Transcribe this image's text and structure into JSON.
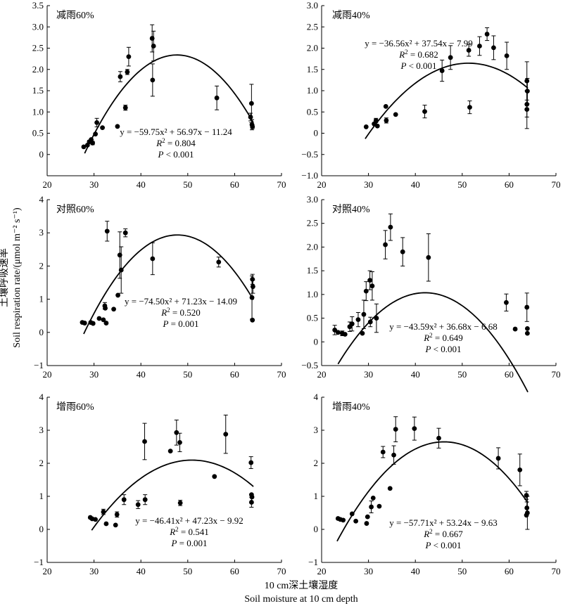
{
  "y_label_cn": "土壤呼吸速率",
  "y_label_en": "Soil respiration rate/(μmol m⁻² s⁻¹)",
  "x_label_cn": "10 cm深土壤湿度",
  "x_label_en": "Soil moisture at 10 cm depth",
  "chart_data": [
    {
      "type": "scatter",
      "title": "减雨60%",
      "xlim": [
        20,
        70
      ],
      "ylim": [
        -0.5,
        3.5
      ],
      "xticks": [
        20,
        30,
        40,
        50,
        60,
        70
      ],
      "yticks": [
        0,
        0.5,
        1.0,
        1.5,
        2.0,
        2.5,
        3.0,
        3.5
      ],
      "ytick_labels": [
        "0",
        "0.5",
        "1.0",
        "1.5",
        "2.0",
        "2.5",
        "3.0",
        "3.5"
      ],
      "fit": {
        "a": -59.75,
        "b": 56.97,
        "c": -11.24,
        "x_range": [
          28,
          64
        ]
      },
      "eq_line1": "y = −59.75x² + 56.97x − 11.24",
      "r2_value": " = 0.804",
      "p_value": " < 0.001",
      "points": [
        [
          27.8,
          0.18,
          0
        ],
        [
          28.6,
          0.22,
          0
        ],
        [
          29.0,
          0.3,
          0.03
        ],
        [
          29.4,
          0.35,
          0
        ],
        [
          29.7,
          0.27,
          0.04
        ],
        [
          30.3,
          0.48,
          0
        ],
        [
          30.6,
          0.75,
          0.1
        ],
        [
          31.8,
          0.63,
          0
        ],
        [
          35.0,
          0.66,
          0
        ],
        [
          35.6,
          1.83,
          0.12
        ],
        [
          36.7,
          1.1,
          0.06
        ],
        [
          37.1,
          1.94,
          0.06
        ],
        [
          37.4,
          2.3,
          0.22
        ],
        [
          42.4,
          2.73,
          0.32
        ],
        [
          42.5,
          1.75,
          0.38
        ],
        [
          42.7,
          2.55,
          0.35
        ],
        [
          56.2,
          1.33,
          0.28
        ],
        [
          63.4,
          0.88,
          0.09
        ],
        [
          63.6,
          1.2,
          0.45
        ],
        [
          63.7,
          0.7,
          0.12
        ],
        [
          63.8,
          0.65,
          0.04
        ]
      ]
    },
    {
      "type": "scatter",
      "title": "减雨40%",
      "xlim": [
        20,
        70
      ],
      "ylim": [
        -1.0,
        3.0
      ],
      "xticks": [
        20,
        30,
        40,
        50,
        60,
        70
      ],
      "yticks": [
        -1.0,
        -0.5,
        0,
        0.5,
        1.0,
        1.5,
        2.0,
        2.5,
        3.0
      ],
      "ytick_labels": [
        "−1.0",
        "−0.5",
        "0",
        "0.5",
        "1.0",
        "1.5",
        "2.0",
        "2.5",
        "3.0"
      ],
      "fit": {
        "a": -36.56,
        "b": 37.54,
        "c": -7.99,
        "x_range": [
          29.3,
          64
        ]
      },
      "eq_line1": "y = −36.56x² + 37.54x − 7.99",
      "r2_value": " = 0.682",
      "p_value": " < 0.001",
      "points": [
        [
          29.5,
          0.15,
          0
        ],
        [
          31.2,
          0.22,
          0
        ],
        [
          31.6,
          0.3,
          0.05
        ],
        [
          31.9,
          0.17,
          0
        ],
        [
          33.7,
          0.63,
          0
        ],
        [
          33.8,
          0.3,
          0.06
        ],
        [
          35.8,
          0.44,
          0
        ],
        [
          42.0,
          0.51,
          0.15
        ],
        [
          45.7,
          1.47,
          0.25
        ],
        [
          47.5,
          1.78,
          0.28
        ],
        [
          51.4,
          1.95,
          0.14
        ],
        [
          51.6,
          0.61,
          0.15
        ],
        [
          53.7,
          2.05,
          0.22
        ],
        [
          55.3,
          2.33,
          0.15
        ],
        [
          56.7,
          2.01,
          0.28
        ],
        [
          59.5,
          1.82,
          0.32
        ],
        [
          63.8,
          1.23,
          0.45
        ],
        [
          63.9,
          0.99,
          0.3
        ],
        [
          63.8,
          0.68,
          0.3
        ],
        [
          63.8,
          0.56,
          0.45
        ]
      ]
    },
    {
      "type": "scatter",
      "title": "对照60%",
      "xlim": [
        20,
        70
      ],
      "ylim": [
        -1,
        4
      ],
      "xticks": [
        20,
        30,
        40,
        50,
        60,
        70
      ],
      "yticks": [
        -1,
        0,
        1,
        2,
        3,
        4
      ],
      "ytick_labels": [
        "−1",
        "0",
        "1",
        "2",
        "3",
        "4"
      ],
      "fit": {
        "a": -74.5,
        "b": 71.23,
        "c": -14.09,
        "x_range": [
          27.8,
          64
        ]
      },
      "eq_line1": "y = −74.50x² + 71.23x − 14.09",
      "r2_value": " = 0.520",
      "p_value": " = 0.001",
      "points": [
        [
          27.5,
          0.3,
          0
        ],
        [
          28.0,
          0.28,
          0
        ],
        [
          29.3,
          0.3,
          0
        ],
        [
          29.8,
          0.27,
          0
        ],
        [
          31.1,
          0.42,
          0
        ],
        [
          32.0,
          0.38,
          0
        ],
        [
          32.3,
          0.8,
          0.1
        ],
        [
          32.4,
          0.73,
          0
        ],
        [
          32.6,
          0.28,
          0
        ],
        [
          32.8,
          3.05,
          0.3
        ],
        [
          34.2,
          0.7,
          0
        ],
        [
          35.1,
          1.12,
          0
        ],
        [
          35.5,
          2.33,
          0.7
        ],
        [
          35.8,
          1.88,
          0.7
        ],
        [
          36.7,
          3.0,
          0.12
        ],
        [
          42.5,
          2.22,
          0.48
        ],
        [
          56.6,
          2.12,
          0.15
        ],
        [
          63.8,
          1.6,
          0.15
        ],
        [
          63.9,
          1.38,
          0.2
        ],
        [
          63.7,
          1.05,
          0.65
        ],
        [
          63.8,
          0.37,
          0
        ]
      ]
    },
    {
      "type": "scatter",
      "title": "对照40%",
      "xlim": [
        20,
        70
      ],
      "ylim": [
        -0.5,
        3.0
      ],
      "xticks": [
        20,
        30,
        40,
        50,
        60,
        70
      ],
      "yticks": [
        -0.5,
        0,
        0.5,
        1.0,
        1.5,
        2.0,
        2.5,
        3.0
      ],
      "ytick_labels": [
        "−0.5",
        "0",
        "0.5",
        "1.0",
        "1.5",
        "2.0",
        "2.5",
        "3.0"
      ],
      "fit": {
        "a": -43.59,
        "b": 36.68,
        "c": -6.68,
        "x_range": [
          23.5,
          64
        ]
      },
      "eq_line1": "y = −43.59x² + 36.68x − 6.68",
      "r2_value": " = 0.649",
      "p_value": " < 0.001",
      "points": [
        [
          22.8,
          0.25,
          0.1
        ],
        [
          23.5,
          0.2,
          0
        ],
        [
          24.4,
          0.18,
          0.05
        ],
        [
          25.0,
          0.16,
          0
        ],
        [
          26.0,
          0.32,
          0.1
        ],
        [
          26.5,
          0.38,
          0.15
        ],
        [
          27.8,
          0.47,
          0.15
        ],
        [
          28.7,
          0.18,
          0
        ],
        [
          29.0,
          0.58,
          0.3
        ],
        [
          29.5,
          1.07,
          0.2
        ],
        [
          30.3,
          1.3,
          0.2
        ],
        [
          30.4,
          0.42,
          0.1
        ],
        [
          30.8,
          1.18,
          0.3
        ],
        [
          31.7,
          0.5,
          0.3
        ],
        [
          33.6,
          2.05,
          0.3
        ],
        [
          34.7,
          2.42,
          0.28
        ],
        [
          37.3,
          1.9,
          0.3
        ],
        [
          42.8,
          1.78,
          0.5
        ],
        [
          59.4,
          0.83,
          0.18
        ],
        [
          61.3,
          0.27,
          0
        ],
        [
          63.8,
          0.73,
          0.3
        ],
        [
          63.9,
          0.28,
          0
        ],
        [
          63.9,
          0.18,
          0
        ]
      ]
    },
    {
      "type": "scatter",
      "title": "增雨60%",
      "xlim": [
        20,
        70
      ],
      "ylim": [
        -1,
        4
      ],
      "xticks": [
        20,
        30,
        40,
        50,
        60,
        70
      ],
      "yticks": [
        -1,
        0,
        1,
        2,
        3,
        4
      ],
      "ytick_labels": [
        "−1",
        "0",
        "1",
        "2",
        "3",
        "4"
      ],
      "fit": {
        "a": -46.41,
        "b": 47.23,
        "c": -9.92,
        "x_range": [
          29.5,
          64
        ]
      },
      "eq_line1": "y = −46.41x² + 47.23x − 9.92",
      "r2_value": " = 0.541",
      "p_value": " = 0.001",
      "points": [
        [
          29.2,
          0.36,
          0
        ],
        [
          29.6,
          0.32,
          0
        ],
        [
          30.3,
          0.3,
          0
        ],
        [
          32.0,
          0.53,
          0.08
        ],
        [
          32.6,
          0.17,
          0
        ],
        [
          34.6,
          0.13,
          0
        ],
        [
          34.9,
          0.45,
          0.08
        ],
        [
          36.4,
          0.9,
          0.15
        ],
        [
          39.4,
          0.75,
          0.12
        ],
        [
          40.8,
          2.66,
          0.55
        ],
        [
          40.9,
          0.9,
          0.15
        ],
        [
          46.3,
          2.37,
          0
        ],
        [
          47.6,
          2.93,
          0.38
        ],
        [
          48.3,
          2.63,
          0.28
        ],
        [
          48.4,
          0.8,
          0.08
        ],
        [
          55.7,
          1.6,
          0
        ],
        [
          58.1,
          2.88,
          0.58
        ],
        [
          63.5,
          2.02,
          0.18
        ],
        [
          63.6,
          1.05,
          0
        ],
        [
          63.7,
          0.98,
          0
        ],
        [
          63.6,
          0.82,
          0.15
        ]
      ]
    },
    {
      "type": "scatter",
      "title": "增雨40%",
      "xlim": [
        20,
        70
      ],
      "ylim": [
        -1,
        4
      ],
      "xticks": [
        20,
        30,
        40,
        50,
        60,
        70
      ],
      "yticks": [
        -1,
        0,
        1,
        2,
        3,
        4
      ],
      "ytick_labels": [
        "−1",
        "0",
        "1",
        "2",
        "3",
        "4"
      ],
      "fit": {
        "a": -57.71,
        "b": 53.24,
        "c": -9.63,
        "x_range": [
          23.3,
          64
        ]
      },
      "eq_line1": "y = −57.71x² + 53.24x − 9.63",
      "r2_value": " = 0.667",
      "p_value": " < 0.001",
      "points": [
        [
          23.5,
          0.33,
          0
        ],
        [
          24.0,
          0.3,
          0
        ],
        [
          24.6,
          0.28,
          0
        ],
        [
          26.5,
          0.47,
          0
        ],
        [
          27.3,
          0.25,
          0
        ],
        [
          29.6,
          0.18,
          0
        ],
        [
          29.8,
          0.38,
          0
        ],
        [
          30.6,
          0.68,
          0.18
        ],
        [
          31.0,
          0.95,
          0
        ],
        [
          32.3,
          0.7,
          0
        ],
        [
          33.1,
          2.34,
          0.17
        ],
        [
          34.6,
          1.24,
          0
        ],
        [
          35.4,
          2.25,
          0.28
        ],
        [
          35.8,
          3.03,
          0.38
        ],
        [
          39.8,
          3.05,
          0.35
        ],
        [
          45.0,
          2.76,
          0.3
        ],
        [
          57.7,
          2.15,
          0.32
        ],
        [
          62.3,
          1.8,
          0.48
        ],
        [
          63.7,
          1.03,
          0.12
        ],
        [
          63.8,
          0.65,
          0.18
        ],
        [
          63.9,
          0.5,
          0.5
        ],
        [
          63.7,
          0.43,
          0
        ]
      ]
    }
  ]
}
